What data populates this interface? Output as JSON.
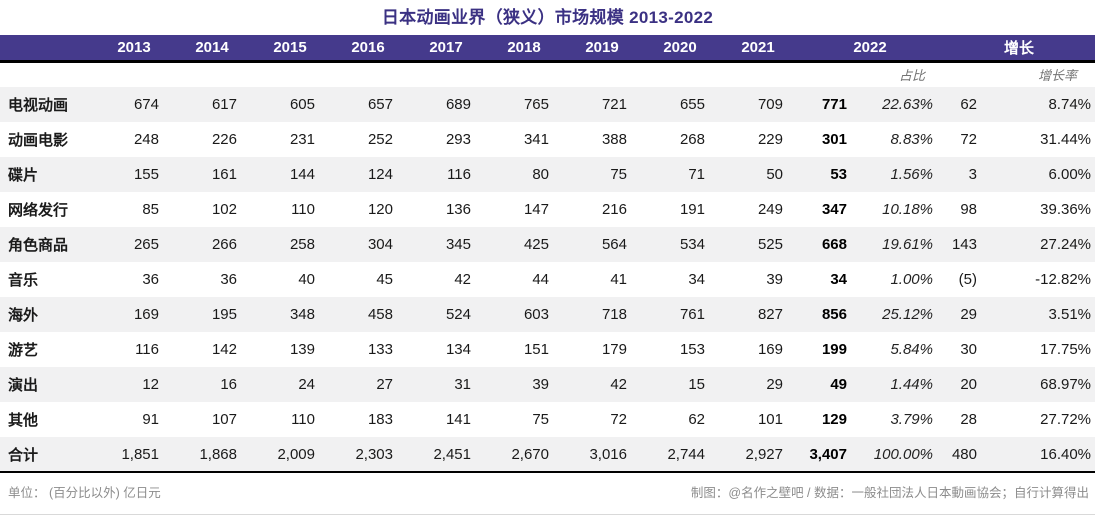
{
  "title": "日本动画业界（狭义）市场规模 2013-2022",
  "table": {
    "year_headers": [
      "2013",
      "2014",
      "2015",
      "2016",
      "2017",
      "2018",
      "2019",
      "2020",
      "2021"
    ],
    "header_2022": "2022",
    "header_growth": "增长",
    "subheader_share": "占比",
    "subheader_growth_rate": "增长率",
    "rows": [
      {
        "label": "电视动画",
        "values": [
          "674",
          "617",
          "605",
          "657",
          "689",
          "765",
          "721",
          "655",
          "709"
        ],
        "v2022": "771",
        "share": "22.63%",
        "growth": "62",
        "rate": "8.74%"
      },
      {
        "label": "动画电影",
        "values": [
          "248",
          "226",
          "231",
          "252",
          "293",
          "341",
          "388",
          "268",
          "229"
        ],
        "v2022": "301",
        "share": "8.83%",
        "growth": "72",
        "rate": "31.44%"
      },
      {
        "label": "碟片",
        "values": [
          "155",
          "161",
          "144",
          "124",
          "116",
          "80",
          "75",
          "71",
          "50"
        ],
        "v2022": "53",
        "share": "1.56%",
        "growth": "3",
        "rate": "6.00%"
      },
      {
        "label": "网络发行",
        "values": [
          "85",
          "102",
          "110",
          "120",
          "136",
          "147",
          "216",
          "191",
          "249"
        ],
        "v2022": "347",
        "share": "10.18%",
        "growth": "98",
        "rate": "39.36%"
      },
      {
        "label": "角色商品",
        "values": [
          "265",
          "266",
          "258",
          "304",
          "345",
          "425",
          "564",
          "534",
          "525"
        ],
        "v2022": "668",
        "share": "19.61%",
        "growth": "143",
        "rate": "27.24%"
      },
      {
        "label": "音乐",
        "values": [
          "36",
          "36",
          "40",
          "45",
          "42",
          "44",
          "41",
          "34",
          "39"
        ],
        "v2022": "34",
        "share": "1.00%",
        "growth": "(5)",
        "rate": "-12.82%"
      },
      {
        "label": "海外",
        "values": [
          "169",
          "195",
          "348",
          "458",
          "524",
          "603",
          "718",
          "761",
          "827"
        ],
        "v2022": "856",
        "share": "25.12%",
        "growth": "29",
        "rate": "3.51%"
      },
      {
        "label": "游艺",
        "values": [
          "116",
          "142",
          "139",
          "133",
          "134",
          "151",
          "179",
          "153",
          "169"
        ],
        "v2022": "199",
        "share": "5.84%",
        "growth": "30",
        "rate": "17.75%"
      },
      {
        "label": "演出",
        "values": [
          "12",
          "16",
          "24",
          "27",
          "31",
          "39",
          "42",
          "15",
          "29"
        ],
        "v2022": "49",
        "share": "1.44%",
        "growth": "20",
        "rate": "68.97%"
      },
      {
        "label": "其他",
        "values": [
          "91",
          "107",
          "110",
          "183",
          "141",
          "75",
          "72",
          "62",
          "101"
        ],
        "v2022": "129",
        "share": "3.79%",
        "growth": "28",
        "rate": "27.72%"
      }
    ],
    "total_row": {
      "label": "合计",
      "values": [
        "1,851",
        "1,868",
        "2,009",
        "2,303",
        "2,451",
        "2,670",
        "3,016",
        "2,744",
        "2,927"
      ],
      "v2022": "3,407",
      "share": "100.00%",
      "growth": "480",
      "rate": "16.40%"
    }
  },
  "footer": {
    "left": "单位： (百分比以外) 亿日元",
    "right": "制图：@名作之壁吧 / 数据：一般社団法人日本動画協会；自行计算得出"
  },
  "colors": {
    "header_bg": "#453A8C",
    "title_text": "#3B3183",
    "stripe": "#F1F1F2",
    "subheader_text": "#737373",
    "footer_text": "#8C8C8C",
    "border_black": "#000000"
  },
  "chart_data": {
    "type": "table",
    "title": "日本动画业界（狭义）市场规模 2013-2022",
    "unit_note": "单位： (百分比以外) 亿日元",
    "columns": [
      "2013",
      "2014",
      "2015",
      "2016",
      "2017",
      "2018",
      "2019",
      "2020",
      "2021",
      "2022",
      "2022占比%",
      "增长",
      "增长率%"
    ],
    "rows": [
      {
        "category": "电视动画",
        "values": [
          674,
          617,
          605,
          657,
          689,
          765,
          721,
          655,
          709,
          771
        ],
        "share_2022_pct": 22.63,
        "growth": 62,
        "growth_rate_pct": 8.74
      },
      {
        "category": "动画电影",
        "values": [
          248,
          226,
          231,
          252,
          293,
          341,
          388,
          268,
          229,
          301
        ],
        "share_2022_pct": 8.83,
        "growth": 72,
        "growth_rate_pct": 31.44
      },
      {
        "category": "碟片",
        "values": [
          155,
          161,
          144,
          124,
          116,
          80,
          75,
          71,
          50,
          53
        ],
        "share_2022_pct": 1.56,
        "growth": 3,
        "growth_rate_pct": 6.0
      },
      {
        "category": "网络发行",
        "values": [
          85,
          102,
          110,
          120,
          136,
          147,
          216,
          191,
          249,
          347
        ],
        "share_2022_pct": 10.18,
        "growth": 98,
        "growth_rate_pct": 39.36
      },
      {
        "category": "角色商品",
        "values": [
          265,
          266,
          258,
          304,
          345,
          425,
          564,
          534,
          525,
          668
        ],
        "share_2022_pct": 19.61,
        "growth": 143,
        "growth_rate_pct": 27.24
      },
      {
        "category": "音乐",
        "values": [
          36,
          36,
          40,
          45,
          42,
          44,
          41,
          34,
          39,
          34
        ],
        "share_2022_pct": 1.0,
        "growth": -5,
        "growth_rate_pct": -12.82
      },
      {
        "category": "海外",
        "values": [
          169,
          195,
          348,
          458,
          524,
          603,
          718,
          761,
          827,
          856
        ],
        "share_2022_pct": 25.12,
        "growth": 29,
        "growth_rate_pct": 3.51
      },
      {
        "category": "游艺",
        "values": [
          116,
          142,
          139,
          133,
          134,
          151,
          179,
          153,
          169,
          199
        ],
        "share_2022_pct": 5.84,
        "growth": 30,
        "growth_rate_pct": 17.75
      },
      {
        "category": "演出",
        "values": [
          12,
          16,
          24,
          27,
          31,
          39,
          42,
          15,
          29,
          49
        ],
        "share_2022_pct": 1.44,
        "growth": 20,
        "growth_rate_pct": 68.97
      },
      {
        "category": "其他",
        "values": [
          91,
          107,
          110,
          183,
          141,
          75,
          72,
          62,
          101,
          129
        ],
        "share_2022_pct": 3.79,
        "growth": 28,
        "growth_rate_pct": 27.72
      }
    ],
    "total": {
      "category": "合计",
      "values": [
        1851,
        1868,
        2009,
        2303,
        2451,
        2670,
        3016,
        2744,
        2927,
        3407
      ],
      "share_2022_pct": 100.0,
      "growth": 480,
      "growth_rate_pct": 16.4
    }
  }
}
